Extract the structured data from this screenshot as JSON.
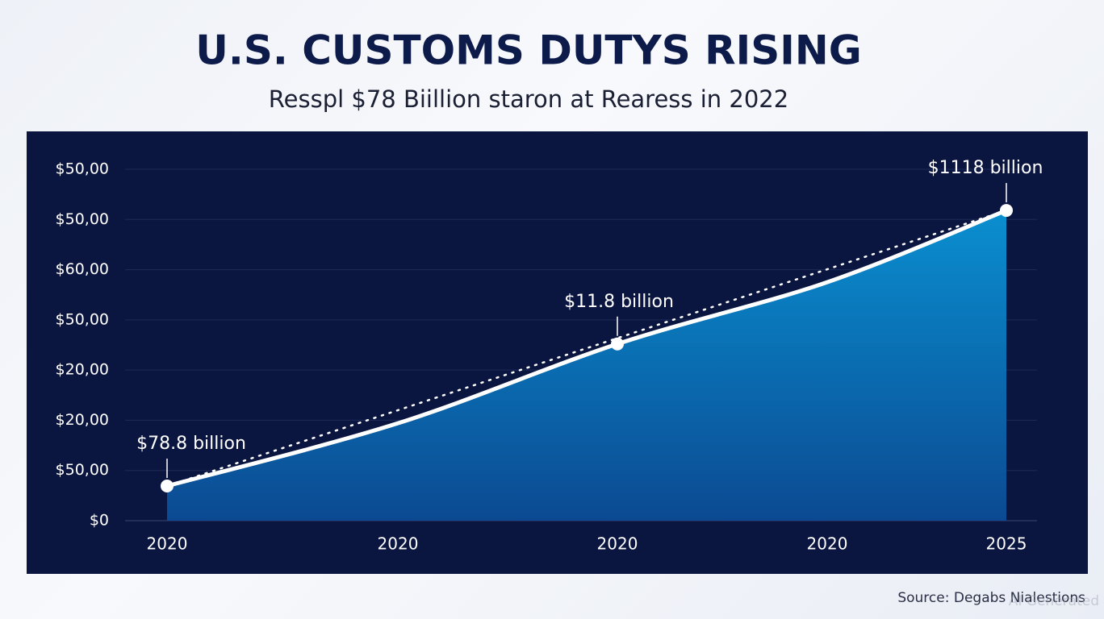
{
  "chart_data": {
    "type": "area",
    "title": "U.S. CUSTOMS DUTYS RISING",
    "subtitle": "Resspl $78 Biillion staron at Rearess in 2022",
    "categories": [
      "2020",
      "2020",
      "2020",
      "2020",
      "2025"
    ],
    "series": [
      {
        "color": "#ffffff",
        "values": [
          0.69,
          1.94,
          3.52,
          4.75,
          6.18
        ]
      }
    ],
    "ylim": [
      0,
      7
    ],
    "yticks": [
      {
        "value": 0,
        "label": "$0"
      },
      {
        "value": 1,
        "label": "$50,00"
      },
      {
        "value": 2,
        "label": "$20,00"
      },
      {
        "value": 3,
        "label": "$20,00"
      },
      {
        "value": 4,
        "label": "$50,00"
      },
      {
        "value": 5,
        "label": "$60,00"
      },
      {
        "value": 6,
        "label": "$50,00"
      },
      {
        "value": 7,
        "label": "$50,00"
      }
    ],
    "grid": true,
    "annotations": [
      {
        "point": 0,
        "text": "$78.8 billion"
      },
      {
        "point": 2,
        "text": "$11.8 billion"
      },
      {
        "point": 4,
        "text": "$1118 billion"
      }
    ],
    "source": "Source: Degabs Nialestions",
    "watermark": "AI Generated"
  }
}
